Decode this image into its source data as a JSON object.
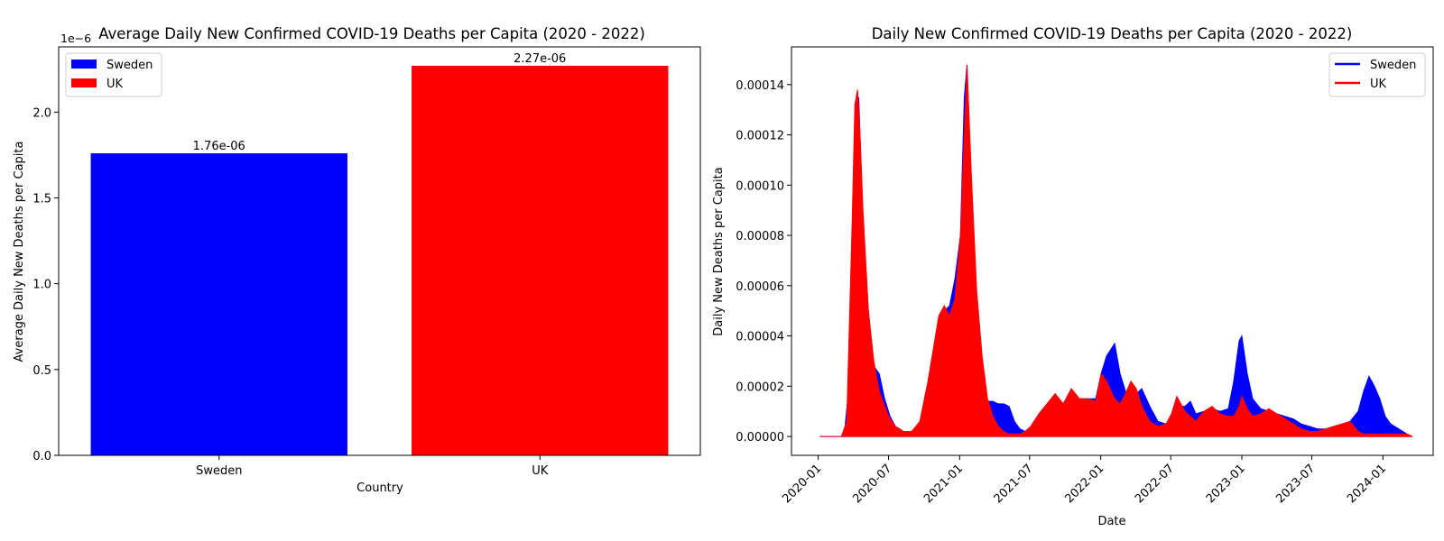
{
  "chart_data": [
    {
      "type": "bar",
      "title": "Average Daily New Confirmed COVID-19 Deaths per Capita (2020 - 2022)",
      "xlabel": "Country",
      "ylabel": "Average Daily New Deaths per Capita",
      "offset_label": "1e−6",
      "categories": [
        "Sweden",
        "UK"
      ],
      "values": [
        1.76e-06,
        2.27e-06
      ],
      "value_labels": [
        "1.76e-06",
        "2.27e-06"
      ],
      "colors": [
        "#0000ff",
        "#ff0000"
      ],
      "ylim": [
        0,
        2.38e-06
      ],
      "yticks": [
        0,
        5e-07,
        1e-06,
        1.5e-06,
        2e-06
      ],
      "ytick_labels": [
        "0.0",
        "0.5",
        "1.0",
        "1.5",
        "2.0"
      ],
      "legend": {
        "placement": "upper-left",
        "entries": [
          {
            "label": "Sweden",
            "color": "#0000ff"
          },
          {
            "label": "UK",
            "color": "#ff0000"
          }
        ]
      },
      "grid": false
    },
    {
      "type": "area",
      "title": "Daily New Confirmed COVID-19 Deaths per Capita (2020 - 2022)",
      "xlabel": "Date",
      "ylabel": "Daily New Deaths per Capita",
      "xlim": [
        "2019-10-24",
        "2024-05-10"
      ],
      "ylim": [
        -7.5e-06,
        0.000155
      ],
      "xticks": [
        "2020-01",
        "2020-07",
        "2021-01",
        "2021-07",
        "2022-01",
        "2022-07",
        "2023-01",
        "2023-07",
        "2024-01"
      ],
      "yticks": [
        0,
        2e-05,
        4e-05,
        6e-05,
        8e-05,
        0.0001,
        0.00012,
        0.00014
      ],
      "ytick_labels": [
        "0.00000",
        "0.00002",
        "0.00004",
        "0.00006",
        "0.00008",
        "0.00010",
        "0.00012",
        "0.00014"
      ],
      "legend": {
        "placement": "upper-right"
      },
      "grid": false,
      "series": [
        {
          "name": "Sweden",
          "color": "#0000ff",
          "points": [
            [
              "2020-01-05",
              0
            ],
            [
              "2020-03-08",
              0
            ],
            [
              "2020-03-22",
              2.2e-05
            ],
            [
              "2020-04-05",
              0.00012
            ],
            [
              "2020-04-15",
              0.000135
            ],
            [
              "2020-04-26",
              8.5e-05
            ],
            [
              "2020-05-10",
              5e-05
            ],
            [
              "2020-05-24",
              2.8e-05
            ],
            [
              "2020-06-07",
              2.5e-05
            ],
            [
              "2020-06-21",
              1.5e-05
            ],
            [
              "2020-07-05",
              8e-06
            ],
            [
              "2020-07-19",
              4e-06
            ],
            [
              "2020-08-09",
              2e-06
            ],
            [
              "2020-08-30",
              2e-06
            ],
            [
              "2020-09-20",
              4e-06
            ],
            [
              "2020-10-11",
              1.2e-05
            ],
            [
              "2020-10-25",
              2.8e-05
            ],
            [
              "2020-11-08",
              4e-05
            ],
            [
              "2020-11-22",
              5e-05
            ],
            [
              "2020-12-06",
              5.2e-05
            ],
            [
              "2020-12-20",
              6.3e-05
            ],
            [
              "2021-01-03",
              8e-05
            ],
            [
              "2021-01-13",
              0.000135
            ],
            [
              "2021-01-20",
              0.000148
            ],
            [
              "2021-01-31",
              0.0001
            ],
            [
              "2021-02-14",
              5e-05
            ],
            [
              "2021-02-28",
              2.2e-05
            ],
            [
              "2021-03-14",
              1.4e-05
            ],
            [
              "2021-03-28",
              1.4e-05
            ],
            [
              "2021-04-11",
              1.3e-05
            ],
            [
              "2021-04-25",
              1.3e-05
            ],
            [
              "2021-05-09",
              1.2e-05
            ],
            [
              "2021-05-23",
              6e-06
            ],
            [
              "2021-06-06",
              3e-06
            ],
            [
              "2021-06-20",
              2e-06
            ],
            [
              "2021-07-04",
              4e-06
            ],
            [
              "2021-07-25",
              9e-06
            ],
            [
              "2021-08-15",
              1.3e-05
            ],
            [
              "2021-09-05",
              1.7e-05
            ],
            [
              "2021-09-26",
              1.3e-05
            ],
            [
              "2021-10-17",
              1.9e-05
            ],
            [
              "2021-11-07",
              1.5e-05
            ],
            [
              "2021-11-28",
              1.5e-05
            ],
            [
              "2021-12-19",
              1.5e-05
            ],
            [
              "2022-01-02",
              2.5e-05
            ],
            [
              "2022-01-16",
              3.2e-05
            ],
            [
              "2022-02-06",
              3.7e-05
            ],
            [
              "2022-02-20",
              2.5e-05
            ],
            [
              "2022-03-06",
              1.8e-05
            ],
            [
              "2022-03-20",
              1.6e-05
            ],
            [
              "2022-04-03",
              1.7e-05
            ],
            [
              "2022-04-17",
              1.9e-05
            ],
            [
              "2022-05-08",
              1.2e-05
            ],
            [
              "2022-05-29",
              6e-06
            ],
            [
              "2022-06-19",
              5e-06
            ],
            [
              "2022-07-03",
              8e-06
            ],
            [
              "2022-07-17",
              1.2e-05
            ],
            [
              "2022-08-07",
              1.2e-05
            ],
            [
              "2022-08-21",
              1.4e-05
            ],
            [
              "2022-09-04",
              9e-06
            ],
            [
              "2022-09-25",
              1e-05
            ],
            [
              "2022-10-16",
              1.1e-05
            ],
            [
              "2022-11-06",
              1e-05
            ],
            [
              "2022-11-27",
              1.1e-05
            ],
            [
              "2022-12-11",
              2.2e-05
            ],
            [
              "2022-12-25",
              3.8e-05
            ],
            [
              "2023-01-01",
              4e-05
            ],
            [
              "2023-01-15",
              2.5e-05
            ],
            [
              "2023-01-29",
              1.5e-05
            ],
            [
              "2023-02-19",
              1.1e-05
            ],
            [
              "2023-03-12",
              1e-05
            ],
            [
              "2023-04-02",
              9e-06
            ],
            [
              "2023-04-23",
              8e-06
            ],
            [
              "2023-05-14",
              7e-06
            ],
            [
              "2023-06-04",
              5e-06
            ],
            [
              "2023-06-25",
              4e-06
            ],
            [
              "2023-07-16",
              3e-06
            ],
            [
              "2023-08-06",
              3e-06
            ],
            [
              "2023-08-27",
              4e-06
            ],
            [
              "2023-09-17",
              5e-06
            ],
            [
              "2023-10-08",
              6e-06
            ],
            [
              "2023-10-29",
              1e-05
            ],
            [
              "2023-11-12",
              1.8e-05
            ],
            [
              "2023-11-26",
              2.4e-05
            ],
            [
              "2023-12-10",
              2e-05
            ],
            [
              "2023-12-24",
              1.5e-05
            ],
            [
              "2024-01-07",
              8e-06
            ],
            [
              "2024-01-21",
              5e-06
            ],
            [
              "2024-02-11",
              3e-06
            ],
            [
              "2024-03-03",
              1e-06
            ],
            [
              "2024-03-17",
              0
            ]
          ]
        },
        {
          "name": "UK",
          "color": "#ff0000",
          "points": [
            [
              "2020-01-05",
              0
            ],
            [
              "2020-03-01",
              0
            ],
            [
              "2020-03-15",
              6e-06
            ],
            [
              "2020-03-29",
              8.5e-05
            ],
            [
              "2020-04-05",
              0.000132
            ],
            [
              "2020-04-12",
              0.000138
            ],
            [
              "2020-04-19",
              0.000118
            ],
            [
              "2020-04-26",
              9e-05
            ],
            [
              "2020-05-10",
              5e-05
            ],
            [
              "2020-05-24",
              3e-05
            ],
            [
              "2020-06-07",
              1.8e-05
            ],
            [
              "2020-06-21",
              1.2e-05
            ],
            [
              "2020-07-05",
              7e-06
            ],
            [
              "2020-07-19",
              4e-06
            ],
            [
              "2020-08-09",
              2e-06
            ],
            [
              "2020-08-30",
              2e-06
            ],
            [
              "2020-09-20",
              6e-06
            ],
            [
              "2020-10-11",
              2.2e-05
            ],
            [
              "2020-10-25",
              3.5e-05
            ],
            [
              "2020-11-08",
              4.8e-05
            ],
            [
              "2020-11-22",
              5.2e-05
            ],
            [
              "2020-12-06",
              4.8e-05
            ],
            [
              "2020-12-20",
              5.5e-05
            ],
            [
              "2021-01-03",
              8e-05
            ],
            [
              "2021-01-13",
              0.00012
            ],
            [
              "2021-01-20",
              0.000148
            ],
            [
              "2021-01-31",
              0.000105
            ],
            [
              "2021-02-14",
              5.8e-05
            ],
            [
              "2021-02-28",
              3.2e-05
            ],
            [
              "2021-03-14",
              1.5e-05
            ],
            [
              "2021-03-28",
              8e-06
            ],
            [
              "2021-04-11",
              4e-06
            ],
            [
              "2021-04-25",
              2e-06
            ],
            [
              "2021-05-09",
              1e-06
            ],
            [
              "2021-05-23",
              1e-06
            ],
            [
              "2021-06-06",
              1e-06
            ],
            [
              "2021-06-20",
              2e-06
            ],
            [
              "2021-07-04",
              4e-06
            ],
            [
              "2021-07-25",
              9e-06
            ],
            [
              "2021-08-15",
              1.3e-05
            ],
            [
              "2021-09-05",
              1.7e-05
            ],
            [
              "2021-09-26",
              1.3e-05
            ],
            [
              "2021-10-17",
              1.9e-05
            ],
            [
              "2021-11-07",
              1.5e-05
            ],
            [
              "2021-11-28",
              1.5e-05
            ],
            [
              "2021-12-19",
              1.4e-05
            ],
            [
              "2022-01-02",
              2.5e-05
            ],
            [
              "2022-01-16",
              2.2e-05
            ],
            [
              "2022-02-06",
              1.5e-05
            ],
            [
              "2022-02-20",
              1.3e-05
            ],
            [
              "2022-03-06",
              1.7e-05
            ],
            [
              "2022-03-20",
              2.2e-05
            ],
            [
              "2022-04-03",
              1.9e-05
            ],
            [
              "2022-04-17",
              1.2e-05
            ],
            [
              "2022-05-08",
              6e-06
            ],
            [
              "2022-05-29",
              4e-06
            ],
            [
              "2022-06-19",
              5e-06
            ],
            [
              "2022-07-03",
              9e-06
            ],
            [
              "2022-07-17",
              1.6e-05
            ],
            [
              "2022-08-07",
              1e-05
            ],
            [
              "2022-08-21",
              8e-06
            ],
            [
              "2022-09-04",
              6e-06
            ],
            [
              "2022-09-25",
              1e-05
            ],
            [
              "2022-10-16",
              1.2e-05
            ],
            [
              "2022-11-06",
              9e-06
            ],
            [
              "2022-11-27",
              8e-06
            ],
            [
              "2022-12-11",
              8e-06
            ],
            [
              "2022-12-25",
              1.2e-05
            ],
            [
              "2023-01-01",
              1.6e-05
            ],
            [
              "2023-01-15",
              1.1e-05
            ],
            [
              "2023-01-29",
              8e-06
            ],
            [
              "2023-02-19",
              9e-06
            ],
            [
              "2023-03-12",
              1.1e-05
            ],
            [
              "2023-04-02",
              9e-06
            ],
            [
              "2023-04-23",
              7e-06
            ],
            [
              "2023-05-14",
              5e-06
            ],
            [
              "2023-06-04",
              3e-06
            ],
            [
              "2023-06-25",
              2e-06
            ],
            [
              "2023-07-16",
              2e-06
            ],
            [
              "2023-08-06",
              3e-06
            ],
            [
              "2023-08-27",
              4e-06
            ],
            [
              "2023-09-17",
              5e-06
            ],
            [
              "2023-10-08",
              6e-06
            ],
            [
              "2023-10-29",
              2e-06
            ],
            [
              "2023-11-12",
              1e-06
            ],
            [
              "2023-11-26",
              1e-06
            ],
            [
              "2023-12-10",
              1e-06
            ],
            [
              "2023-12-24",
              1e-06
            ],
            [
              "2024-01-07",
              1e-06
            ],
            [
              "2024-01-21",
              1e-06
            ],
            [
              "2024-02-11",
              1e-06
            ],
            [
              "2024-03-03",
              1e-06
            ],
            [
              "2024-03-17",
              0
            ]
          ]
        }
      ]
    }
  ]
}
